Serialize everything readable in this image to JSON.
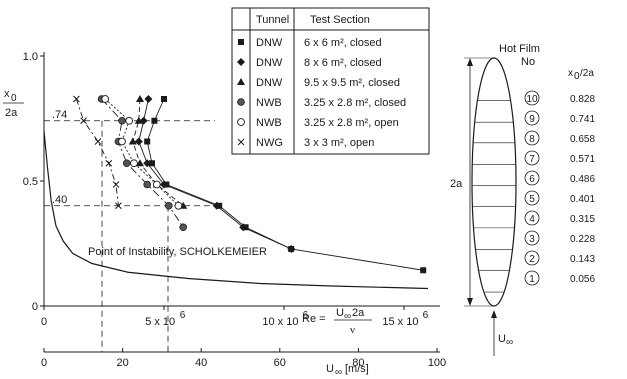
{
  "chart_data": {
    "type": "scatter",
    "ylabel": {
      "num": "x",
      "sub": "0",
      "den": "2a"
    },
    "ylim": [
      0,
      1.0
    ],
    "y_ticks": [
      "0",
      "0.5",
      "1.0"
    ],
    "re_axis": {
      "ticks": [
        "0",
        "5 x 10",
        "10 x 10",
        "15 x 10"
      ],
      "tick_exp": "6",
      "tick_values": [
        0,
        5000000,
        10000000,
        15000000
      ],
      "label_lhs": "Re =",
      "label_num": "U",
      "label_num_sub": "∞",
      "label_num_tail": " 2a",
      "label_den": "ν",
      "xlim": [
        0,
        16500000
      ]
    },
    "u_axis": {
      "ticks": [
        "0",
        "20",
        "40",
        "60",
        "80",
        "100"
      ],
      "tick_values": [
        0,
        20,
        40,
        60,
        80,
        100
      ],
      "label": "U",
      "label_sub": "∞",
      "label_unit": "[m/s]"
    },
    "reference_lines": [
      {
        "label": ".74",
        "y": 0.741
      },
      {
        "label": ".40",
        "y": 0.401
      }
    ],
    "legend": {
      "header_tunnel": "Tunnel",
      "header_section": "Test Section",
      "rows": [
        {
          "symbol": "square-filled",
          "tunnel": "DNW",
          "section": "6 x 6 m², closed"
        },
        {
          "symbol": "diamond-filled",
          "tunnel": "DNW",
          "section": "8 x 6 m², closed"
        },
        {
          "symbol": "triangle-filled",
          "tunnel": "DNW",
          "section": "9.5 x 9.5 m², closed"
        },
        {
          "symbol": "circle-filled",
          "tunnel": "NWB",
          "section": "3.25 x 2.8 m², closed"
        },
        {
          "symbol": "circle-open",
          "tunnel": "NWB",
          "section": "3.25 x 2.8 m², open"
        },
        {
          "symbol": "cross",
          "tunnel": "NWG",
          "section": "3 x 3 m², open"
        }
      ]
    },
    "series": [
      {
        "symbol": "square-filled",
        "points": [
          [
            5000000,
            0.828
          ],
          [
            4600000,
            0.741
          ],
          [
            4300000,
            0.658
          ],
          [
            4500000,
            0.571
          ],
          [
            5100000,
            0.486
          ],
          [
            7300000,
            0.401
          ],
          [
            8400000,
            0.315
          ],
          [
            10300000,
            0.228
          ],
          [
            15800000,
            0.143
          ]
        ]
      },
      {
        "symbol": "diamond-filled",
        "points": [
          [
            4350000,
            0.828
          ],
          [
            4150000,
            0.741
          ],
          [
            3950000,
            0.658
          ],
          [
            4300000,
            0.571
          ],
          [
            5000000,
            0.486
          ],
          [
            7200000,
            0.401
          ],
          [
            8300000,
            0.315
          ],
          [
            10300000,
            0.228
          ]
        ]
      },
      {
        "symbol": "triangle-filled",
        "points": [
          [
            4000000,
            0.828
          ],
          [
            3950000,
            0.741
          ],
          [
            3700000,
            0.658
          ],
          [
            4000000,
            0.571
          ],
          [
            4700000,
            0.486
          ],
          [
            5800000,
            0.401
          ]
        ]
      },
      {
        "symbol": "circle-filled",
        "points": [
          [
            2400000,
            0.828
          ],
          [
            3250000,
            0.741
          ],
          [
            3100000,
            0.658
          ],
          [
            3450000,
            0.571
          ],
          [
            4300000,
            0.486
          ],
          [
            5200000,
            0.401
          ],
          [
            5800000,
            0.315
          ]
        ]
      },
      {
        "symbol": "circle-open",
        "points": [
          [
            2550000,
            0.828
          ],
          [
            3550000,
            0.741
          ],
          [
            3250000,
            0.658
          ],
          [
            3750000,
            0.571
          ],
          [
            4700000,
            0.486
          ],
          [
            5600000,
            0.401
          ]
        ]
      },
      {
        "symbol": "cross",
        "points": [
          [
            1350000,
            0.828
          ],
          [
            1650000,
            0.741
          ],
          [
            2250000,
            0.658
          ],
          [
            2700000,
            0.571
          ],
          [
            3000000,
            0.486
          ],
          [
            3100000,
            0.401
          ]
        ]
      }
    ],
    "instability_curve": {
      "label": "Point of Instability, SCHOLKEMEIER",
      "points": [
        [
          0,
          0.7
        ],
        [
          150000,
          0.55
        ],
        [
          300000,
          0.42
        ],
        [
          500000,
          0.32
        ],
        [
          800000,
          0.26
        ],
        [
          1200000,
          0.21
        ],
        [
          2000000,
          0.17
        ],
        [
          3500000,
          0.135
        ],
        [
          6000000,
          0.11
        ],
        [
          9000000,
          0.09
        ],
        [
          12000000,
          0.08
        ],
        [
          16000000,
          0.07
        ]
      ]
    },
    "body_diagram": {
      "height_label": "2a",
      "flow_label_main": "U",
      "flow_label_sub": "∞",
      "header_a": "Hot Film",
      "header_b": "No",
      "header_c": "x",
      "header_c_sub": "0",
      "header_c_tail": "/2a",
      "films": [
        {
          "no": "10",
          "x": "0.828",
          "value": 0.828
        },
        {
          "no": "9",
          "x": "0.741",
          "value": 0.741
        },
        {
          "no": "8",
          "x": "0.658",
          "value": 0.658
        },
        {
          "no": "7",
          "x": "0.571",
          "value": 0.571
        },
        {
          "no": "6",
          "x": "0.486",
          "value": 0.486
        },
        {
          "no": "5",
          "x": "0.401",
          "value": 0.401
        },
        {
          "no": "4",
          "x": "0.315",
          "value": 0.315
        },
        {
          "no": "3",
          "x": "0.228",
          "value": 0.228
        },
        {
          "no": "2",
          "x": "0.143",
          "value": 0.143
        },
        {
          "no": "1",
          "x": "0.056",
          "value": 0.056
        }
      ]
    }
  }
}
